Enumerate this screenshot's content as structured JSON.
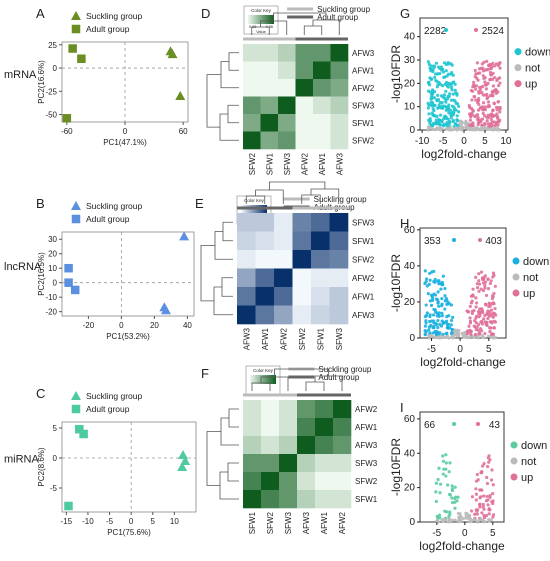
{
  "charts": [
    {
      "panel_letter": "A",
      "row_label": "mRNA",
      "type": "scatter",
      "x_label": "PC1(47.1%)",
      "y_label": "PC2(16.6%)",
      "xlim": [
        -65,
        65
      ],
      "ylim": [
        -58,
        28
      ],
      "xticks": [
        -60,
        0,
        60
      ],
      "yticks": [
        -50,
        -25,
        0,
        25
      ],
      "color": "#6b8e23",
      "legend": [
        {
          "label": "Suckling group",
          "shape": "triangle"
        },
        {
          "label": "Adult group",
          "shape": "square"
        }
      ],
      "points": [
        {
          "x": 47,
          "y": 18,
          "shape": "triangle"
        },
        {
          "x": 49,
          "y": 15,
          "shape": "triangle"
        },
        {
          "x": 57,
          "y": -30,
          "shape": "triangle"
        },
        {
          "x": -54,
          "y": 21,
          "shape": "square"
        },
        {
          "x": -45,
          "y": 10,
          "shape": "square"
        },
        {
          "x": -60,
          "y": -54,
          "shape": "square"
        }
      ]
    },
    {
      "panel_letter": "B",
      "row_label": "lncRNA",
      "type": "scatter",
      "x_label": "PC1(53.2%)",
      "y_label": "PC2(16.5%)",
      "xlim": [
        -36,
        44
      ],
      "ylim": [
        -23,
        35
      ],
      "xticks": [
        -20,
        0,
        20,
        40
      ],
      "yticks": [
        -20,
        -10,
        0,
        10,
        20,
        30
      ],
      "color": "#5b8fe0",
      "legend": [
        {
          "label": "Suckling group",
          "shape": "triangle"
        },
        {
          "label": "Adult group",
          "shape": "square"
        }
      ],
      "points": [
        {
          "x": 38,
          "y": 32,
          "shape": "triangle"
        },
        {
          "x": 26,
          "y": -17,
          "shape": "triangle"
        },
        {
          "x": 27,
          "y": -19,
          "shape": "triangle"
        },
        {
          "x": -32,
          "y": 10,
          "shape": "square"
        },
        {
          "x": -32,
          "y": 0,
          "shape": "square"
        },
        {
          "x": -28,
          "y": -5,
          "shape": "square"
        }
      ]
    },
    {
      "panel_letter": "C",
      "row_label": "miRNA",
      "type": "scatter",
      "x_label": "PC1(75.6%)",
      "y_label": "PC2(8.6%)",
      "xlim": [
        -16,
        15
      ],
      "ylim": [
        -9,
        6
      ],
      "xticks": [
        -15,
        -10,
        -5,
        0,
        5,
        10
      ],
      "yticks": [
        -5,
        0,
        5
      ],
      "color": "#4ecaa0",
      "legend": [
        {
          "label": "Suckling group",
          "shape": "triangle"
        },
        {
          "label": "Adult group",
          "shape": "square"
        }
      ],
      "points": [
        {
          "x": 12,
          "y": 0.5,
          "shape": "triangle"
        },
        {
          "x": 12.5,
          "y": -0.5,
          "shape": "triangle"
        },
        {
          "x": 11.8,
          "y": -1.5,
          "shape": "triangle"
        },
        {
          "x": -12,
          "y": 4.8,
          "shape": "square"
        },
        {
          "x": -11,
          "y": 4,
          "shape": "square"
        },
        {
          "x": -14.5,
          "y": -8,
          "shape": "square"
        }
      ]
    },
    {
      "panel_letter": "D",
      "type": "heatmap",
      "key_title": "Color Key",
      "key_min": "0.88",
      "key_max": "0.96",
      "key_axis_label": "Value",
      "key_lo": "#eef8ee",
      "key_hi": "#0e5c1e",
      "legend": [
        {
          "label": "Suckling group",
          "color": "#bbbbbb"
        },
        {
          "label": "Adult group",
          "color": "#666666"
        }
      ],
      "col_labels": [
        "SFW2",
        "SFW1",
        "SFW3",
        "AFW2",
        "AFW1",
        "AFW3"
      ],
      "row_labels": [
        "AFW3",
        "AFW1",
        "AFW2",
        "SFW3",
        "SFW1",
        "SFW2"
      ],
      "values": [
        [
          0.89,
          0.89,
          0.9,
          0.93,
          0.93,
          0.96
        ],
        [
          0.88,
          0.88,
          0.89,
          0.93,
          0.96,
          0.93
        ],
        [
          0.88,
          0.88,
          0.88,
          0.96,
          0.93,
          0.92
        ],
        [
          0.93,
          0.92,
          0.96,
          0.88,
          0.89,
          0.9
        ],
        [
          0.92,
          0.96,
          0.92,
          0.88,
          0.88,
          0.89
        ],
        [
          0.96,
          0.92,
          0.93,
          0.88,
          0.88,
          0.89
        ]
      ]
    },
    {
      "panel_letter": "E",
      "type": "heatmap",
      "key_title": "Color Key",
      "key_min": "0.7",
      "key_max": "0.9",
      "key_axis_label": "Value",
      "key_lo": "#f3f8fd",
      "key_hi": "#08306b",
      "legend": [
        {
          "label": "Suckling group",
          "color": "#bbbbbb"
        },
        {
          "label": "Adult group",
          "color": "#666666"
        }
      ],
      "col_labels": [
        "AFW3",
        "AFW1",
        "AFW2",
        "SFW2",
        "SFW1",
        "SFW3"
      ],
      "row_labels": [
        "SFW3",
        "SFW1",
        "SFW2",
        "AFW2",
        "AFW1",
        "AFW3"
      ],
      "values": [
        [
          0.77,
          0.77,
          0.74,
          0.83,
          0.85,
          0.9
        ],
        [
          0.76,
          0.75,
          0.74,
          0.84,
          0.9,
          0.85
        ],
        [
          0.74,
          0.73,
          0.73,
          0.9,
          0.84,
          0.83
        ],
        [
          0.8,
          0.85,
          0.9,
          0.73,
          0.74,
          0.74
        ],
        [
          0.84,
          0.9,
          0.85,
          0.73,
          0.75,
          0.77
        ],
        [
          0.9,
          0.84,
          0.8,
          0.74,
          0.76,
          0.77
        ]
      ]
    },
    {
      "panel_letter": "F",
      "type": "heatmap",
      "key_title": "Color Key",
      "key_min": "",
      "key_max": "",
      "key_axis_label": "",
      "key_lo": "#eef8ee",
      "key_hi": "#0e5c1e",
      "legend": [
        {
          "label": "Suckling group",
          "color": "#bbbbbb"
        },
        {
          "label": "Adult group",
          "color": "#666666"
        }
      ],
      "col_labels": [
        "SFW1",
        "SFW2",
        "SFW3",
        "AFW3",
        "AFW1",
        "AFW2"
      ],
      "row_labels": [
        "AFW2",
        "AFW1",
        "AFW3",
        "SFW3",
        "SFW2",
        "SFW1"
      ],
      "values": [
        [
          0.3,
          0.2,
          0.3,
          0.7,
          0.8,
          1.0
        ],
        [
          0.3,
          0.2,
          0.3,
          0.8,
          1.0,
          0.8
        ],
        [
          0.4,
          0.3,
          0.4,
          1.0,
          0.8,
          0.7
        ],
        [
          0.7,
          0.7,
          1.0,
          0.4,
          0.3,
          0.3
        ],
        [
          0.8,
          1.0,
          0.7,
          0.3,
          0.2,
          0.2
        ],
        [
          1.0,
          0.8,
          0.7,
          0.4,
          0.3,
          0.3
        ]
      ]
    },
    {
      "panel_letter": "G",
      "type": "scatter",
      "subtype": "volcano",
      "x_label": "log2fold-change",
      "y_label": "-log10FDR",
      "xlim": [
        -10.5,
        10.5
      ],
      "ylim": [
        0,
        48
      ],
      "xticks": [
        -10,
        -5,
        0,
        5,
        10
      ],
      "yticks": [
        0,
        10,
        20,
        30,
        40
      ],
      "count_down": "2282",
      "count_up": "2524",
      "colors": {
        "down": "#20c5d0",
        "not": "#bbbbbb",
        "up": "#e0709a"
      },
      "legend": [
        {
          "label": "down",
          "key": "down"
        },
        {
          "label": "not",
          "key": "not"
        },
        {
          "label": "up",
          "key": "up"
        }
      ]
    },
    {
      "panel_letter": "H",
      "type": "scatter",
      "subtype": "volcano",
      "x_label": "log2fold-change",
      "y_label": "-log10FDR",
      "xlim": [
        -7,
        8
      ],
      "ylim": [
        0,
        61
      ],
      "xticks": [
        -5,
        0,
        5
      ],
      "yticks": [
        0,
        20,
        40,
        60
      ],
      "count_down": "353",
      "count_up": "403",
      "colors": {
        "down": "#1ab0e0",
        "not": "#bbbbbb",
        "up": "#e0709a"
      },
      "legend": [
        {
          "label": "down",
          "key": "down"
        },
        {
          "label": "not",
          "key": "not"
        },
        {
          "label": "up",
          "key": "up"
        }
      ]
    },
    {
      "panel_letter": "I",
      "type": "scatter",
      "subtype": "volcano",
      "x_label": "log2fold-change",
      "y_label": "-log10FDR",
      "xlim": [
        -8,
        7
      ],
      "ylim": [
        0,
        64
      ],
      "xticks": [
        -5,
        0,
        5
      ],
      "yticks": [
        0,
        20,
        40,
        60
      ],
      "count_down": "66",
      "count_up": "43",
      "colors": {
        "down": "#5acca0",
        "not": "#bbbbbb",
        "up": "#e0709a"
      },
      "legend": [
        {
          "label": "down",
          "key": "down"
        },
        {
          "label": "not",
          "key": "not"
        },
        {
          "label": "up",
          "key": "up"
        }
      ]
    }
  ]
}
